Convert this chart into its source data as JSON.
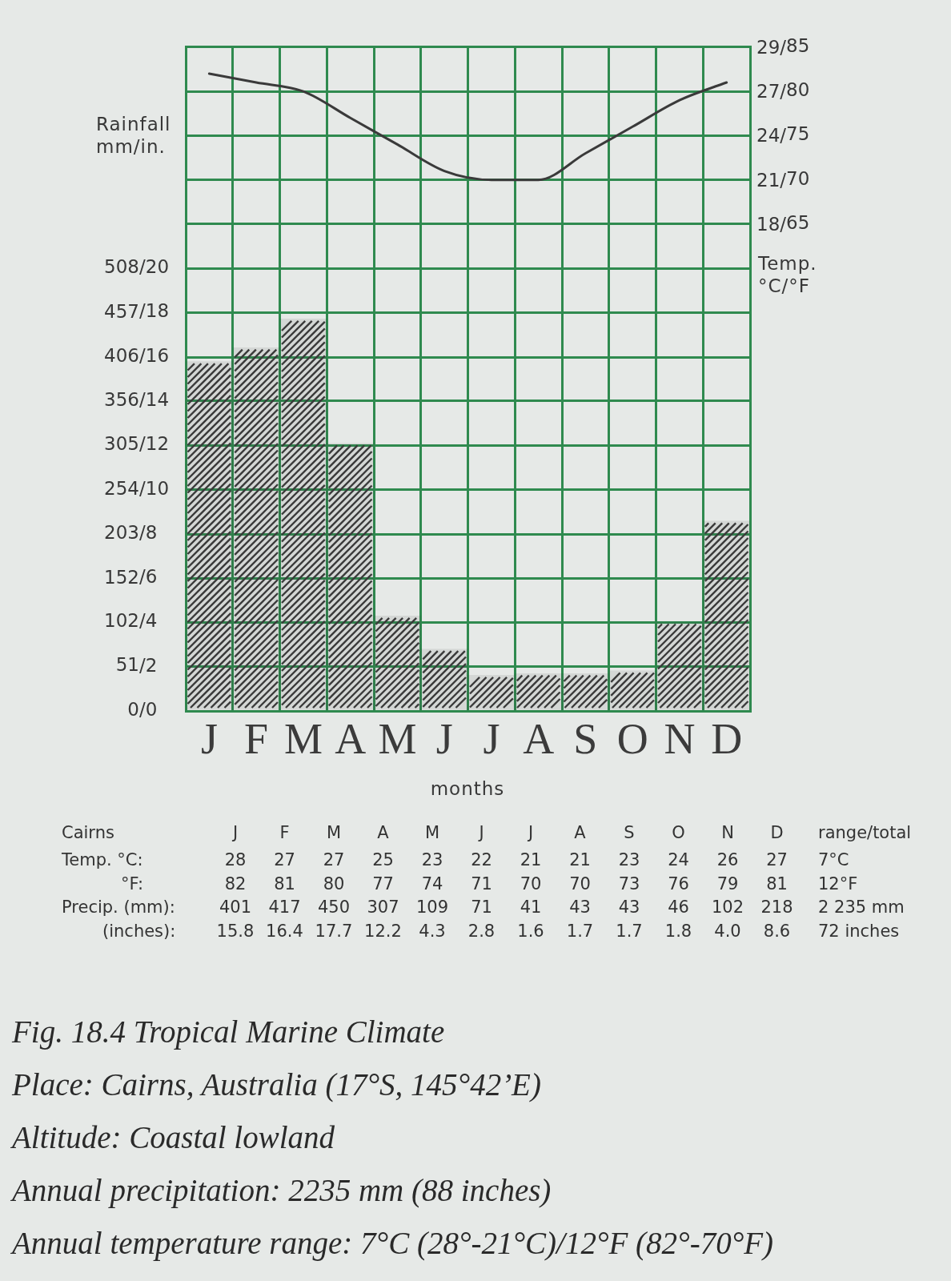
{
  "chart_data": [
    {
      "type": "bar",
      "title": "Fig. 18.4 Tropical Marine Climate",
      "annotations": [
        "18/",
        "21/",
        "24/",
        "27/",
        "29/",
        "Place: Cairns, Australia (17°S, 145°42’E)",
        "Altitude: Coastal lowland",
        "Annual precipitation: 2235 mm (88 inches)",
        "Annual temperature range: 7°C (28°-21°C)/12°F (82°-70°F)"
      ],
      "xlabel": "months",
      "ylabel": "Rainfall mm/in.",
      "y2label": "Temp. °C/°F",
      "categories": [
        "J",
        "F",
        "M",
        "A",
        "M",
        "J",
        "J",
        "A",
        "S",
        "O",
        "N",
        "D"
      ],
      "series": [
        {
          "type": "bar",
          "color": "#3a3a3a",
          "values": [
            401,
            417,
            450,
            307,
            109,
            71,
            41,
            43,
            43,
            46,
            102,
            218
          ]
        },
        {
          "type": "line",
          "axis": "y2",
          "color": "#3a3a3a",
          "values": [
            82,
            81,
            80,
            77,
            74,
            71,
            70,
            70,
            73,
            76,
            79,
            81
          ]
        }
      ],
      "ylim": [
        0,
        762
      ],
      "yticks": [
        0,
        51,
        102,
        152,
        203,
        254,
        305,
        356,
        406,
        457,
        508
      ],
      "y3lim": [
        0,
        30
      ],
      "y3ticks": [
        {
          "value": 0,
          "label": "/0"
        },
        {
          "value": 2,
          "label": "/2"
        },
        {
          "value": 4,
          "label": "/4"
        },
        {
          "value": 6,
          "label": "/6"
        },
        {
          "value": 8,
          "label": "/8"
        },
        {
          "value": 10,
          "label": "/10"
        },
        {
          "value": 12,
          "label": "/12"
        },
        {
          "value": 14,
          "label": "/14"
        },
        {
          "value": 16,
          "label": "/16"
        },
        {
          "value": 18,
          "label": "/18"
        },
        {
          "value": 20,
          "label": "/20"
        }
      ],
      "y2lim": [
        10,
        85
      ],
      "y2ticks": [
        65,
        70,
        75,
        80,
        85
      ],
      "grid": true
    },
    {
      "type": "other",
      "title": "Cairns",
      "categories": [
        "J",
        "F",
        "M",
        "A",
        "M",
        "J",
        "J",
        "A",
        "S",
        "O",
        "N",
        "D"
      ],
      "series": [
        {
          "name": "Temp. °C:",
          "values": [
            28,
            27,
            27,
            25,
            23,
            22,
            21,
            21,
            23,
            24,
            26,
            27
          ]
        },
        {
          "name": "°F:",
          "values": [
            82,
            81,
            80,
            77,
            74,
            71,
            70,
            70,
            73,
            76,
            79,
            81
          ]
        },
        {
          "name": "Precip. (mm):",
          "values": [
            401,
            417,
            450,
            307,
            109,
            71,
            41,
            43,
            43,
            46,
            102,
            218
          ]
        },
        {
          "name": "(inches):",
          "values": [
            15.8,
            16.4,
            17.7,
            12.2,
            4.3,
            2.8,
            1.6,
            1.7,
            1.7,
            1.8,
            4.0,
            8.6
          ],
          "value_labels": [
            "15.8",
            "16.4",
            "17.7",
            "12.2",
            "4.3",
            "2.8",
            "1.6",
            "1.7",
            "1.7",
            "1.8",
            "4.0",
            "8.6"
          ]
        }
      ],
      "data_labels": true,
      "annotations": [
        "range/total",
        "7°C",
        "12°F",
        "2 235 mm",
        "72 inches"
      ]
    }
  ]
}
